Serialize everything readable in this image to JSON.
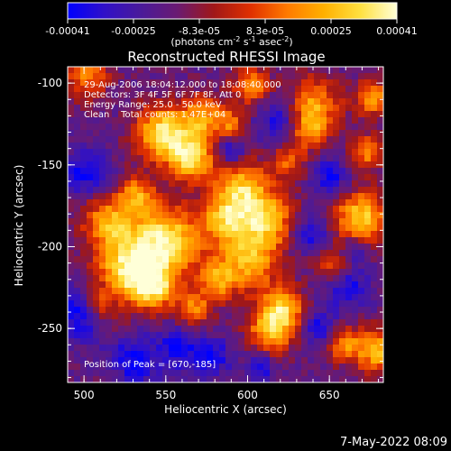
{
  "colorbar": {
    "tick_labels": [
      "-0.00041",
      "-0.00025",
      "-8.3e-05",
      "8.3e-05",
      "0.00025",
      "0.00041"
    ],
    "unit_main": "(photons cm",
    "unit_sup1": "-2",
    "unit_mid1": " s",
    "unit_sup2": "-1",
    "unit_mid2": " asec",
    "unit_sup3": "-2",
    "unit_end": ")",
    "colormap": [
      "#0000ff",
      "#3010c8",
      "#4a1a9a",
      "#6a1a72",
      "#a01818",
      "#e03000",
      "#ff7a00",
      "#ffb000",
      "#ffe040",
      "#ffffd8"
    ]
  },
  "plot": {
    "title": "Reconstructed RHESSI Image",
    "xlabel": "Heliocentric X (arcsec)",
    "ylabel": "Heliocentric Y (arcsec)",
    "xlim": [
      490,
      683
    ],
    "ylim": [
      -283,
      -90
    ],
    "x_ticks": [
      "500",
      "550",
      "600",
      "650"
    ],
    "y_ticks": [
      "-100",
      "-150",
      "-200",
      "-250"
    ],
    "annotations": [
      "29-Aug-2006 18:04:12.000 to 18:08:40.000",
      "Detectors: 3F 4F 5F 6F 7F 8F, Att 0",
      "Energy Range: 25.0 - 50.0 keV",
      "Clean    Total counts: 1.47E+04"
    ],
    "peak_label": "Position of Peak = [670,-185]"
  },
  "footer": {
    "timestamp": "7-May-2022 08:09"
  }
}
